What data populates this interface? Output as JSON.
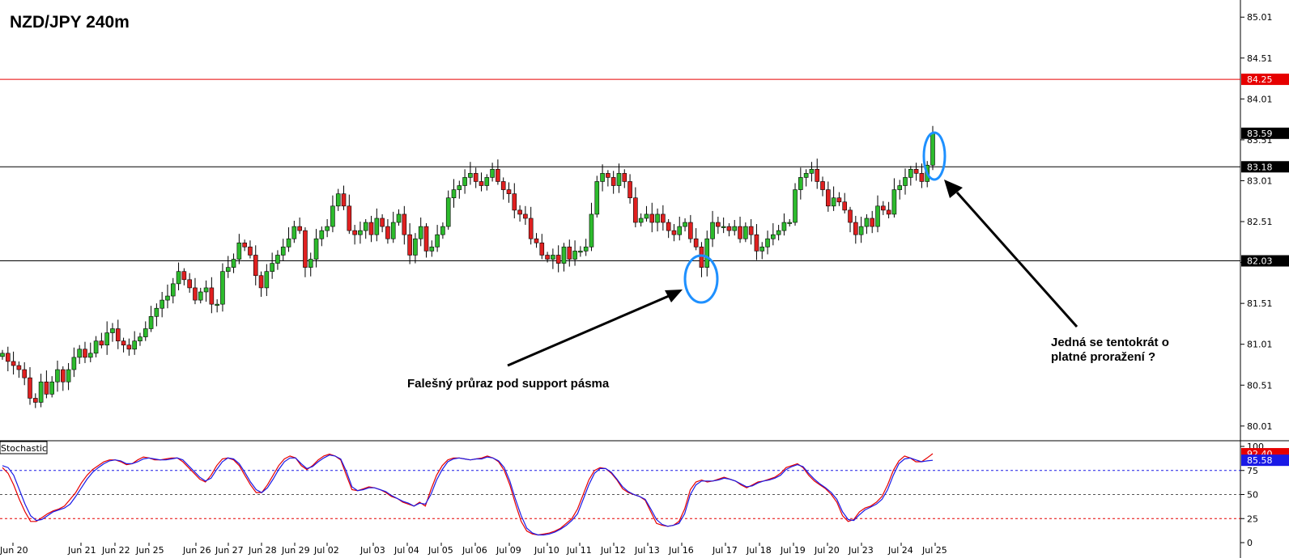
{
  "title": "NZD/JPY 240m",
  "colors": {
    "bull": "#2dbb2d",
    "bear": "#e02020",
    "resistance": "#e60000",
    "support": "#000000",
    "stoch_k": "#e60000",
    "stoch_d": "#1a1ae6",
    "marker": "#1e90ff"
  },
  "chart_data": [
    {
      "type": "candlestick",
      "title": "NZD/JPY 240m",
      "ylim": [
        79.85,
        85.2
      ],
      "y_ticks": [
        "85.01",
        "84.51",
        "84.01",
        "83.51",
        "83.01",
        "82.51",
        "82.01",
        "81.51",
        "81.01",
        "80.51",
        "80.01"
      ],
      "price_tags": [
        {
          "value": "84.25",
          "color": "#e60000"
        },
        {
          "value": "83.59",
          "color": "#000000"
        },
        {
          "value": "83.18",
          "color": "#000000"
        },
        {
          "value": "82.03",
          "color": "#000000"
        }
      ],
      "levels": [
        {
          "name": "resistance",
          "value": 84.25,
          "color": "#e60000"
        },
        {
          "name": "upper-band",
          "value": 83.18,
          "color": "#000000"
        },
        {
          "name": "support",
          "value": 82.03,
          "color": "#000000"
        }
      ],
      "x_labels": [
        "Jun 20",
        "Jun 21",
        "Jun 22",
        "Jun 25",
        "Jun 26",
        "Jun 27",
        "Jun 28",
        "Jun 29",
        "Jul 02",
        "Jul 03",
        "Jul 04",
        "Jul 05",
        "Jul 06",
        "Jul 09",
        "Jul 10",
        "Jul 11",
        "Jul 12",
        "Jul 13",
        "Jul 16",
        "Jul 17",
        "Jul 18",
        "Jul 19",
        "Jul 20",
        "Jul 23",
        "Jul 24",
        "Jul 25"
      ],
      "closes": [
        80.9,
        80.8,
        80.75,
        80.7,
        80.6,
        80.35,
        80.3,
        80.55,
        80.4,
        80.55,
        80.7,
        80.55,
        80.7,
        80.85,
        80.95,
        80.85,
        80.9,
        81.05,
        81.0,
        81.15,
        81.2,
        81.05,
        81.0,
        80.95,
        81.05,
        81.1,
        81.2,
        81.35,
        81.45,
        81.55,
        81.6,
        81.75,
        81.9,
        81.8,
        81.7,
        81.55,
        81.65,
        81.7,
        81.5,
        81.5,
        81.9,
        81.95,
        82.05,
        82.25,
        82.2,
        82.1,
        81.85,
        81.7,
        81.9,
        82.0,
        82.1,
        82.2,
        82.3,
        82.45,
        82.4,
        81.95,
        82.05,
        82.3,
        82.4,
        82.45,
        82.7,
        82.85,
        82.7,
        82.4,
        82.35,
        82.4,
        82.5,
        82.35,
        82.55,
        82.45,
        82.3,
        82.5,
        82.6,
        82.35,
        82.1,
        82.3,
        82.45,
        82.15,
        82.2,
        82.35,
        82.45,
        82.8,
        82.9,
        82.95,
        83.05,
        83.1,
        83.0,
        82.95,
        83.05,
        83.15,
        83.0,
        82.9,
        82.85,
        82.65,
        82.6,
        82.55,
        82.3,
        82.25,
        82.1,
        82.05,
        82.1,
        82.0,
        82.2,
        82.05,
        82.15,
        82.15,
        82.2,
        82.6,
        83.0,
        83.1,
        83.05,
        82.95,
        83.1,
        83.0,
        82.8,
        82.5,
        82.55,
        82.6,
        82.5,
        82.6,
        82.5,
        82.4,
        82.35,
        82.45,
        82.5,
        82.3,
        82.2,
        81.95,
        82.3,
        82.5,
        82.45,
        82.45,
        82.4,
        82.45,
        82.3,
        82.45,
        82.35,
        82.15,
        82.2,
        82.3,
        82.35,
        82.4,
        82.5,
        82.5,
        82.9,
        83.05,
        83.1,
        83.15,
        83.0,
        82.9,
        82.7,
        82.8,
        82.75,
        82.65,
        82.5,
        82.35,
        82.45,
        82.55,
        82.45,
        82.7,
        82.65,
        82.6,
        82.9,
        82.95,
        83.05,
        83.15,
        83.1,
        83.0,
        83.2,
        83.59
      ]
    },
    {
      "type": "line",
      "title": "Stochastic",
      "ylim": [
        0,
        100
      ],
      "y_ticks": [
        "100",
        "75",
        "50",
        "25",
        "0"
      ],
      "levels": [
        {
          "value": 75,
          "color": "#1a1ae6"
        },
        {
          "value": 50,
          "color": "#555555"
        },
        {
          "value": 25,
          "color": "#e60000"
        }
      ],
      "value_tags": [
        {
          "value": "92.40",
          "color": "#e60000"
        },
        {
          "value": "85.58",
          "color": "#1a1ae6"
        }
      ],
      "series": [
        {
          "name": "%K",
          "values": [
            78,
            72,
            60,
            45,
            32,
            22,
            22,
            26,
            30,
            33,
            35,
            38,
            45,
            52,
            62,
            70,
            76,
            80,
            84,
            86,
            86,
            84,
            81,
            82,
            86,
            89,
            88,
            86,
            86,
            87,
            88,
            88,
            84,
            78,
            72,
            66,
            63,
            70,
            80,
            87,
            88,
            86,
            80,
            70,
            60,
            52,
            52,
            60,
            70,
            80,
            87,
            90,
            88,
            80,
            76,
            80,
            86,
            90,
            92,
            90,
            86,
            70,
            55,
            54,
            56,
            58,
            57,
            55,
            52,
            48,
            46,
            42,
            40,
            38,
            42,
            38,
            55,
            70,
            80,
            86,
            88,
            88,
            87,
            86,
            87,
            88,
            90,
            88,
            84,
            75,
            60,
            40,
            22,
            12,
            9,
            8,
            9,
            10,
            12,
            15,
            20,
            25,
            35,
            50,
            65,
            75,
            78,
            77,
            72,
            65,
            56,
            52,
            50,
            48,
            44,
            32,
            20,
            18,
            17,
            18,
            22,
            35,
            55,
            63,
            65,
            63,
            64,
            66,
            68,
            66,
            64,
            60,
            57,
            60,
            63,
            64,
            66,
            68,
            72,
            78,
            80,
            82,
            78,
            70,
            64,
            60,
            56,
            50,
            42,
            28,
            22,
            24,
            32,
            36,
            38,
            42,
            48,
            60,
            75,
            85,
            90,
            88,
            84,
            84,
            88,
            92.4
          ]
        },
        {
          "name": "%D",
          "values": [
            80,
            78,
            70,
            55,
            40,
            28,
            23,
            24,
            28,
            32,
            34,
            36,
            40,
            48,
            57,
            66,
            73,
            78,
            82,
            85,
            86,
            85,
            82,
            82,
            84,
            87,
            88,
            87,
            86,
            86,
            87,
            88,
            86,
            80,
            74,
            68,
            64,
            67,
            76,
            84,
            88,
            87,
            82,
            73,
            63,
            55,
            52,
            57,
            66,
            76,
            84,
            88,
            88,
            82,
            77,
            79,
            84,
            88,
            91,
            90,
            87,
            74,
            58,
            54,
            55,
            57,
            57,
            55,
            53,
            49,
            46,
            43,
            41,
            38,
            41,
            40,
            50,
            65,
            76,
            84,
            87,
            88,
            87,
            86,
            87,
            87,
            89,
            88,
            85,
            78,
            64,
            45,
            28,
            15,
            10,
            8,
            8,
            9,
            11,
            14,
            18,
            23,
            30,
            45,
            60,
            72,
            77,
            77,
            73,
            66,
            58,
            53,
            50,
            48,
            45,
            35,
            24,
            19,
            17,
            18,
            20,
            30,
            50,
            60,
            64,
            64,
            64,
            65,
            67,
            66,
            64,
            61,
            58,
            59,
            62,
            64,
            65,
            67,
            70,
            76,
            79,
            81,
            79,
            72,
            66,
            61,
            57,
            52,
            45,
            32,
            24,
            23,
            29,
            34,
            37,
            40,
            45,
            55,
            70,
            82,
            87,
            88,
            86,
            84,
            85,
            85.58
          ]
        }
      ]
    }
  ],
  "annotations": {
    "false_break": "Falešný průraz pod support pásma",
    "valid_break_line1": "Jedná se tentokrát o",
    "valid_break_line2": "platné proražení ?"
  },
  "stochastic_label": "Stochastic"
}
